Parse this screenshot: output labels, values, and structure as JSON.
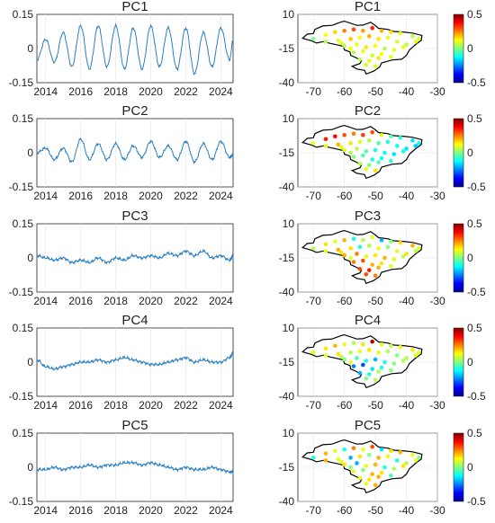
{
  "chart_data": [
    {
      "type": "line",
      "panel": "time-series",
      "title": "PC1",
      "x": [
        2013.5,
        2014.0,
        2014.5,
        2015.0,
        2015.5,
        2016.0,
        2016.5,
        2017.0,
        2017.5,
        2018.0,
        2018.5,
        2019.0,
        2019.5,
        2020.0,
        2020.5,
        2021.0,
        2021.5,
        2022.0,
        2022.5,
        2023.0,
        2023.5,
        2024.0,
        2024.5,
        2024.7
      ],
      "y": [
        -0.05,
        0.04,
        -0.06,
        0.07,
        -0.08,
        0.1,
        -0.09,
        0.1,
        -0.08,
        0.1,
        -0.09,
        0.09,
        -0.09,
        0.1,
        -0.08,
        0.09,
        -0.09,
        0.09,
        -0.11,
        0.07,
        -0.08,
        0.09,
        -0.05,
        0.04
      ],
      "xticks": [
        "2014",
        "2016",
        "2018",
        "2020",
        "2022",
        "2024"
      ],
      "yticks": [
        "0.15",
        "0",
        "-0.15"
      ],
      "xlim": [
        2013.5,
        2024.7
      ],
      "ylim": [
        -0.15,
        0.15
      ],
      "color": "#2a7fc1"
    },
    {
      "type": "line",
      "panel": "time-series",
      "title": "PC2",
      "x": [
        2013.5,
        2014.0,
        2014.5,
        2015.0,
        2015.5,
        2016.0,
        2016.5,
        2017.0,
        2017.5,
        2018.0,
        2018.5,
        2019.0,
        2019.5,
        2020.0,
        2020.5,
        2021.0,
        2021.5,
        2022.0,
        2022.5,
        2023.0,
        2023.5,
        2024.0,
        2024.5,
        2024.7
      ],
      "y": [
        0.0,
        0.02,
        -0.03,
        0.02,
        -0.04,
        0.06,
        -0.03,
        0.04,
        -0.03,
        0.04,
        -0.03,
        0.03,
        -0.02,
        0.05,
        -0.02,
        0.03,
        -0.03,
        0.05,
        -0.04,
        0.04,
        -0.03,
        0.05,
        -0.02,
        -0.01
      ],
      "xticks": [
        "2014",
        "2016",
        "2018",
        "2020",
        "2022",
        "2024"
      ],
      "yticks": [
        "0.15",
        "0",
        "-0.15"
      ],
      "xlim": [
        2013.5,
        2024.7
      ],
      "ylim": [
        -0.15,
        0.15
      ],
      "color": "#2a7fc1"
    },
    {
      "type": "line",
      "panel": "time-series",
      "title": "PC3",
      "x": [
        2013.5,
        2014.0,
        2014.5,
        2015.0,
        2015.5,
        2016.0,
        2016.5,
        2017.0,
        2017.5,
        2018.0,
        2018.5,
        2019.0,
        2019.5,
        2020.0,
        2020.5,
        2021.0,
        2021.5,
        2022.0,
        2022.5,
        2023.0,
        2023.5,
        2024.0,
        2024.5,
        2024.7
      ],
      "y": [
        0.01,
        0.0,
        -0.01,
        0.0,
        -0.02,
        -0.01,
        -0.02,
        0.0,
        -0.02,
        0.0,
        -0.01,
        0.01,
        0.0,
        0.01,
        0.0,
        0.02,
        0.01,
        0.03,
        0.01,
        0.03,
        0.0,
        0.01,
        -0.01,
        0.01
      ],
      "xticks": [
        "2014",
        "2016",
        "2018",
        "2020",
        "2022",
        "2024"
      ],
      "yticks": [
        "0.15",
        "0",
        "-0.15"
      ],
      "xlim": [
        2013.5,
        2024.7
      ],
      "ylim": [
        -0.15,
        0.15
      ],
      "color": "#2a7fc1"
    },
    {
      "type": "line",
      "panel": "time-series",
      "title": "PC4",
      "x": [
        2013.5,
        2014.0,
        2014.5,
        2015.0,
        2015.5,
        2016.0,
        2016.5,
        2017.0,
        2017.5,
        2018.0,
        2018.5,
        2019.0,
        2019.5,
        2020.0,
        2020.5,
        2021.0,
        2021.5,
        2022.0,
        2022.5,
        2023.0,
        2023.5,
        2024.0,
        2024.5,
        2024.7
      ],
      "y": [
        0.01,
        -0.02,
        -0.03,
        -0.02,
        -0.01,
        0.0,
        0.0,
        0.01,
        0.0,
        0.01,
        0.02,
        0.01,
        0.0,
        -0.01,
        -0.01,
        0.0,
        0.01,
        0.02,
        0.0,
        0.01,
        0.0,
        0.0,
        0.02,
        0.04
      ],
      "xticks": [
        "2014",
        "2016",
        "2018",
        "2020",
        "2022",
        "2024"
      ],
      "yticks": [
        "0.15",
        "0",
        "-0.15"
      ],
      "xlim": [
        2013.5,
        2024.7
      ],
      "ylim": [
        -0.15,
        0.15
      ],
      "color": "#2a7fc1"
    },
    {
      "type": "line",
      "panel": "time-series",
      "title": "PC5",
      "x": [
        2013.5,
        2014.0,
        2014.5,
        2015.0,
        2015.5,
        2016.0,
        2016.5,
        2017.0,
        2017.5,
        2018.0,
        2018.5,
        2019.0,
        2019.5,
        2020.0,
        2020.5,
        2021.0,
        2021.5,
        2022.0,
        2022.5,
        2023.0,
        2023.5,
        2024.0,
        2024.5,
        2024.7
      ],
      "y": [
        -0.01,
        -0.01,
        0.0,
        -0.01,
        0.0,
        0.0,
        0.01,
        0.0,
        0.01,
        0.01,
        0.02,
        0.02,
        0.01,
        0.02,
        0.01,
        0.0,
        -0.01,
        0.0,
        -0.01,
        -0.01,
        0.0,
        -0.01,
        -0.02,
        -0.02
      ],
      "xticks": [
        "2014",
        "2016",
        "2018",
        "2020",
        "2022",
        "2024"
      ],
      "yticks": [
        "0.15",
        "0",
        "-0.15"
      ],
      "xlim": [
        2013.5,
        2024.7
      ],
      "ylim": [
        -0.15,
        0.15
      ],
      "color": "#2a7fc1"
    },
    {
      "type": "scatter",
      "panel": "map",
      "title": "PC1",
      "x": [
        -70,
        -66,
        -63,
        -60,
        -57,
        -54,
        -51,
        -48,
        -45,
        -42,
        -38,
        -36,
        -66,
        -62,
        -58,
        -55,
        -52,
        -49,
        -46,
        -43,
        -40,
        -37,
        -60,
        -56,
        -53,
        -50,
        -47,
        -44,
        -41,
        -57,
        -54,
        -51,
        -48,
        -45,
        -55,
        -52,
        -49,
        -53,
        -50,
        -58,
        -61
      ],
      "y": [
        -8,
        -5,
        -3,
        -2,
        -1,
        -2,
        0,
        -2,
        -3,
        -4,
        -6,
        -8,
        -10,
        -9,
        -8,
        -7,
        -6,
        -8,
        -7,
        -10,
        -12,
        -10,
        -13,
        -12,
        -14,
        -13,
        -15,
        -16,
        -14,
        -18,
        -17,
        -20,
        -19,
        -21,
        -23,
        -24,
        -22,
        -27,
        -28,
        -15,
        -11
      ],
      "values": [
        0.0,
        0.12,
        0.17,
        0.25,
        0.3,
        0.22,
        0.35,
        0.2,
        0.15,
        0.1,
        0.05,
        0.1,
        0.05,
        0.1,
        0.18,
        0.12,
        0.2,
        0.15,
        0.1,
        0.08,
        0.05,
        0.1,
        0.05,
        0.1,
        0.15,
        0.12,
        0.05,
        0.1,
        0.12,
        0.05,
        0.1,
        0.08,
        0.12,
        0.1,
        0.05,
        0.1,
        0.15,
        0.08,
        0.1,
        0.12,
        0.1
      ],
      "xticks": [
        "-70",
        "-60",
        "-50",
        "-40",
        "-30"
      ],
      "yticks": [
        "10",
        "-15",
        "-40"
      ],
      "xlim": [
        -75,
        -30
      ],
      "ylim": [
        -40,
        10
      ],
      "colorbar_ticks": [
        "0.5",
        "0",
        "-0.5"
      ],
      "clim": [
        -0.5,
        0.5
      ]
    },
    {
      "type": "scatter",
      "panel": "map",
      "title": "PC2",
      "x": [
        -70,
        -66,
        -63,
        -60,
        -57,
        -54,
        -51,
        -48,
        -45,
        -42,
        -38,
        -36,
        -66,
        -62,
        -58,
        -55,
        -52,
        -49,
        -46,
        -43,
        -40,
        -37,
        -60,
        -56,
        -53,
        -50,
        -47,
        -44,
        -41,
        -57,
        -54,
        -51,
        -48,
        -45,
        -55,
        -52,
        -49,
        -53,
        -50,
        -58,
        -61
      ],
      "y": [
        -8,
        -5,
        -3,
        -2,
        -1,
        -2,
        0,
        -2,
        -3,
        -4,
        -6,
        -8,
        -10,
        -9,
        -8,
        -7,
        -6,
        -8,
        -7,
        -10,
        -12,
        -10,
        -13,
        -12,
        -14,
        -13,
        -15,
        -16,
        -14,
        -18,
        -17,
        -20,
        -19,
        -21,
        -23,
        -24,
        -22,
        -27,
        -28,
        -15,
        -11
      ],
      "values": [
        0.1,
        0.35,
        0.38,
        0.3,
        0.25,
        0.32,
        0.3,
        0.1,
        -0.05,
        -0.1,
        -0.15,
        -0.12,
        0.1,
        0.2,
        0.15,
        0.1,
        0.05,
        -0.05,
        -0.1,
        -0.12,
        -0.15,
        -0.18,
        0.1,
        0.05,
        -0.05,
        -0.1,
        -0.12,
        -0.15,
        -0.1,
        0.0,
        -0.05,
        -0.1,
        -0.12,
        -0.08,
        0.05,
        0.0,
        -0.05,
        0.1,
        0.15,
        0.05,
        0.1
      ],
      "xticks": [
        "-70",
        "-60",
        "-50",
        "-40",
        "-30"
      ],
      "yticks": [
        "10",
        "-15",
        "-40"
      ],
      "xlim": [
        -75,
        -30
      ],
      "ylim": [
        -40,
        10
      ],
      "colorbar_ticks": [
        "0.5",
        "0",
        "-0.5"
      ],
      "clim": [
        -0.5,
        0.5
      ]
    },
    {
      "type": "scatter",
      "panel": "map",
      "title": "PC3",
      "x": [
        -70,
        -66,
        -63,
        -60,
        -57,
        -54,
        -51,
        -48,
        -45,
        -42,
        -38,
        -36,
        -66,
        -62,
        -58,
        -55,
        -52,
        -49,
        -46,
        -43,
        -40,
        -37,
        -60,
        -56,
        -53,
        -50,
        -47,
        -44,
        -41,
        -57,
        -54,
        -51,
        -48,
        -45,
        -55,
        -52,
        -49,
        -53,
        -50,
        -58,
        -61
      ],
      "y": [
        -8,
        -5,
        -3,
        -2,
        -1,
        -2,
        0,
        -2,
        -3,
        -4,
        -6,
        -8,
        -10,
        -9,
        -8,
        -7,
        -6,
        -8,
        -7,
        -10,
        -12,
        -10,
        -13,
        -12,
        -14,
        -13,
        -15,
        -16,
        -14,
        -18,
        -17,
        -20,
        -19,
        -21,
        -23,
        -24,
        -22,
        -27,
        -28,
        -15,
        -11
      ],
      "values": [
        0.05,
        0.15,
        0.1,
        0.2,
        -0.1,
        0.05,
        0.1,
        -0.2,
        0.0,
        0.15,
        0.2,
        0.1,
        0.1,
        0.2,
        0.15,
        -0.1,
        0.05,
        0.1,
        0.0,
        0.1,
        0.15,
        0.05,
        0.2,
        0.25,
        0.1,
        0.15,
        0.2,
        0.1,
        0.05,
        0.25,
        0.3,
        0.2,
        0.15,
        0.1,
        0.3,
        0.35,
        0.2,
        0.3,
        0.25,
        0.1,
        0.15
      ],
      "xticks": [
        "-70",
        "-60",
        "-50",
        "-40",
        "-30"
      ],
      "yticks": [
        "10",
        "-15",
        "-40"
      ],
      "xlim": [
        -75,
        -30
      ],
      "ylim": [
        -40,
        10
      ],
      "colorbar_ticks": [
        "0.5",
        "0",
        "-0.5"
      ],
      "clim": [
        -0.5,
        0.5
      ]
    },
    {
      "type": "scatter",
      "panel": "map",
      "title": "PC4",
      "x": [
        -70,
        -66,
        -63,
        -60,
        -57,
        -54,
        -51,
        -48,
        -45,
        -42,
        -38,
        -36,
        -66,
        -62,
        -58,
        -55,
        -52,
        -49,
        -46,
        -43,
        -40,
        -37,
        -60,
        -56,
        -53,
        -50,
        -47,
        -44,
        -41,
        -57,
        -54,
        -51,
        -48,
        -45,
        -55,
        -52,
        -49,
        -53,
        -50,
        -58,
        -61
      ],
      "y": [
        -8,
        -5,
        -3,
        -2,
        -1,
        -2,
        0,
        -2,
        -3,
        -4,
        -6,
        -8,
        -10,
        -9,
        -8,
        -7,
        -6,
        -8,
        -7,
        -10,
        -12,
        -10,
        -13,
        -12,
        -14,
        -13,
        -15,
        -16,
        -14,
        -18,
        -17,
        -20,
        -19,
        -21,
        -23,
        -24,
        -22,
        -27,
        -28,
        -15,
        -11
      ],
      "values": [
        0.1,
        0.15,
        0.2,
        0.1,
        0.05,
        0.15,
        0.45,
        0.1,
        0.05,
        0.1,
        0.15,
        0.1,
        0.1,
        0.15,
        0.05,
        0.1,
        0.15,
        0.1,
        0.05,
        0.0,
        0.05,
        0.1,
        0.0,
        -0.05,
        -0.1,
        -0.2,
        -0.1,
        0.0,
        0.05,
        -0.25,
        -0.3,
        -0.15,
        -0.1,
        0.0,
        -0.2,
        -0.1,
        0.05,
        0.0,
        0.05,
        0.1,
        0.05
      ],
      "xticks": [
        "-70",
        "-60",
        "-50",
        "-40",
        "-30"
      ],
      "yticks": [
        "10",
        "-15",
        "-40"
      ],
      "xlim": [
        -75,
        -30
      ],
      "ylim": [
        -40,
        10
      ],
      "colorbar_ticks": [
        "0.5",
        "0",
        "-0.5"
      ],
      "clim": [
        -0.5,
        0.5
      ]
    },
    {
      "type": "scatter",
      "panel": "map",
      "title": "PC5",
      "x": [
        -70,
        -66,
        -63,
        -60,
        -57,
        -54,
        -51,
        -48,
        -45,
        -42,
        -38,
        -36,
        -66,
        -62,
        -58,
        -55,
        -52,
        -49,
        -46,
        -43,
        -40,
        -37,
        -60,
        -56,
        -53,
        -50,
        -47,
        -44,
        -41,
        -57,
        -54,
        -51,
        -48,
        -45,
        -55,
        -52,
        -49,
        -53,
        -50,
        -58,
        -61
      ],
      "y": [
        -8,
        -5,
        -3,
        -2,
        -1,
        -2,
        0,
        -2,
        -3,
        -4,
        -6,
        -8,
        -10,
        -9,
        -8,
        -7,
        -6,
        -8,
        -7,
        -10,
        -12,
        -10,
        -13,
        -12,
        -14,
        -13,
        -15,
        -16,
        -14,
        -18,
        -17,
        -20,
        -19,
        -21,
        -23,
        -24,
        -22,
        -27,
        -28,
        -15,
        -11
      ],
      "values": [
        -0.1,
        0.2,
        0.1,
        -0.1,
        0.25,
        0.1,
        0.3,
        -0.15,
        0.15,
        0.2,
        0.1,
        0.0,
        0.2,
        0.1,
        -0.2,
        0.15,
        0.0,
        0.2,
        0.1,
        -0.1,
        0.05,
        0.1,
        0.15,
        -0.2,
        0.1,
        0.2,
        -0.1,
        0.05,
        0.15,
        0.1,
        0.0,
        0.2,
        0.15,
        -0.05,
        0.1,
        0.15,
        0.2,
        0.1,
        0.2,
        0.0,
        0.1
      ],
      "xticks": [
        "-70",
        "-60",
        "-50",
        "-40",
        "-30"
      ],
      "yticks": [
        "10",
        "-15",
        "-40"
      ],
      "xlim": [
        -75,
        -30
      ],
      "ylim": [
        -40,
        10
      ],
      "colorbar_ticks": [
        "0.5",
        "0",
        "-0.5"
      ],
      "clim": [
        -0.5,
        0.5
      ]
    }
  ]
}
